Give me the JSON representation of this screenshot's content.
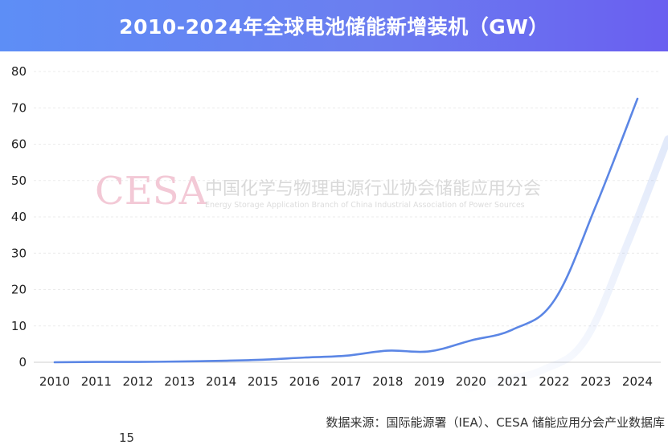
{
  "header": {
    "title": "2010-2024年全球电池储能新增装机（GW）"
  },
  "watermark": {
    "logo_text": "CESA",
    "org_name_cn": "中国化学与物理电源行业协会储能应用分会",
    "org_name_en": "Energy Storage Application Branch of China Industrial Association of Power Sources"
  },
  "footer": {
    "source": "数据来源：国际能源署（IEA）、CESA 储能应用分会产业数据库",
    "cut_text": "15"
  },
  "colors": {
    "title_bar_start": "#5d8ef6",
    "title_bar_end": "#6a5ff0",
    "line": "#5b86e5",
    "grid": "#ebebeb"
  },
  "chart_data": {
    "type": "line",
    "title": "2010-2024年全球电池储能新增装机（GW）",
    "xlabel": "",
    "ylabel": "",
    "x": [
      "2010",
      "2011",
      "2012",
      "2013",
      "2014",
      "2015",
      "2016",
      "2017",
      "2018",
      "2019",
      "2020",
      "2021",
      "2022",
      "2023",
      "2024"
    ],
    "series": [
      {
        "values": [
          0,
          0.1,
          0.1,
          0.2,
          0.4,
          0.7,
          1.3,
          1.8,
          3.2,
          3.0,
          6.0,
          9.0,
          17.0,
          43.0,
          72.5
        ]
      }
    ],
    "ylim": [
      0,
      80
    ],
    "yticks": [
      0,
      10,
      20,
      30,
      40,
      50,
      60,
      70,
      80
    ],
    "grid": true,
    "legend": "none"
  }
}
